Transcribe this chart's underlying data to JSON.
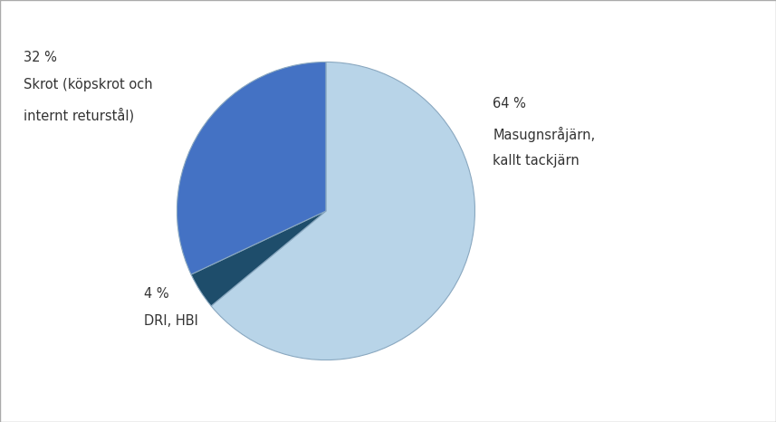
{
  "slices": [
    64,
    4,
    32
  ],
  "colors": [
    "#b8d4e8",
    "#1e4d6b",
    "#4472c4"
  ],
  "edge_color": "#8aa8c0",
  "startangle": 90,
  "background_color": "#ffffff",
  "font_size": 10.5,
  "label_color": "#333333",
  "border_color": "#aaaaaa"
}
